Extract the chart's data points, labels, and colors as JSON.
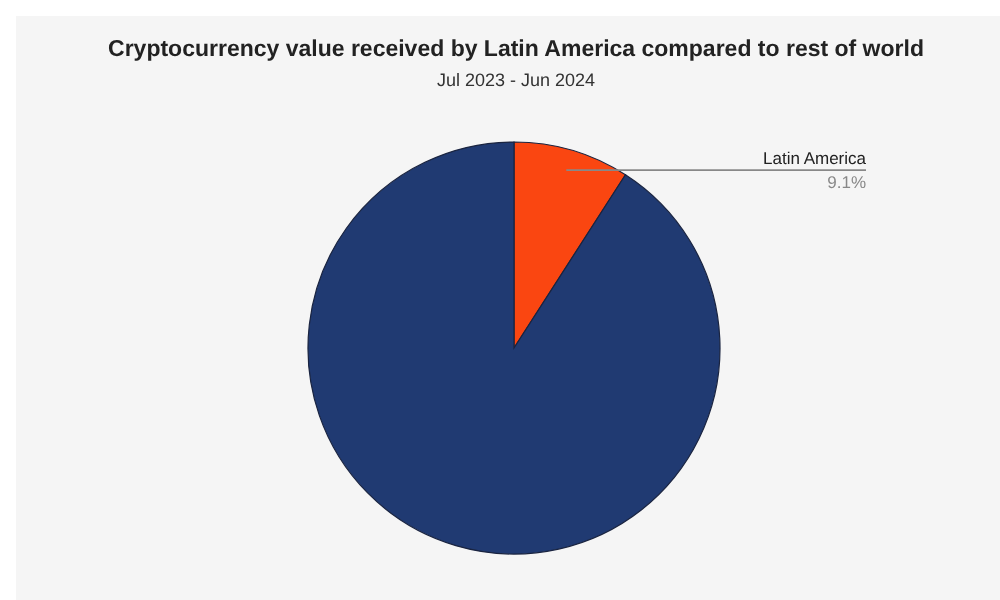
{
  "chart_data": {
    "type": "pie",
    "title": "Cryptocurrency value received by Latin America compared to rest of world",
    "subtitle": "Jul 2023 - Jun 2024",
    "categories": [
      "Latin America",
      null
    ],
    "values": [
      9.1,
      90.9
    ],
    "value_labels": [
      "9.1%",
      null
    ],
    "colors": [
      "#fa4611",
      "#203a72"
    ]
  }
}
